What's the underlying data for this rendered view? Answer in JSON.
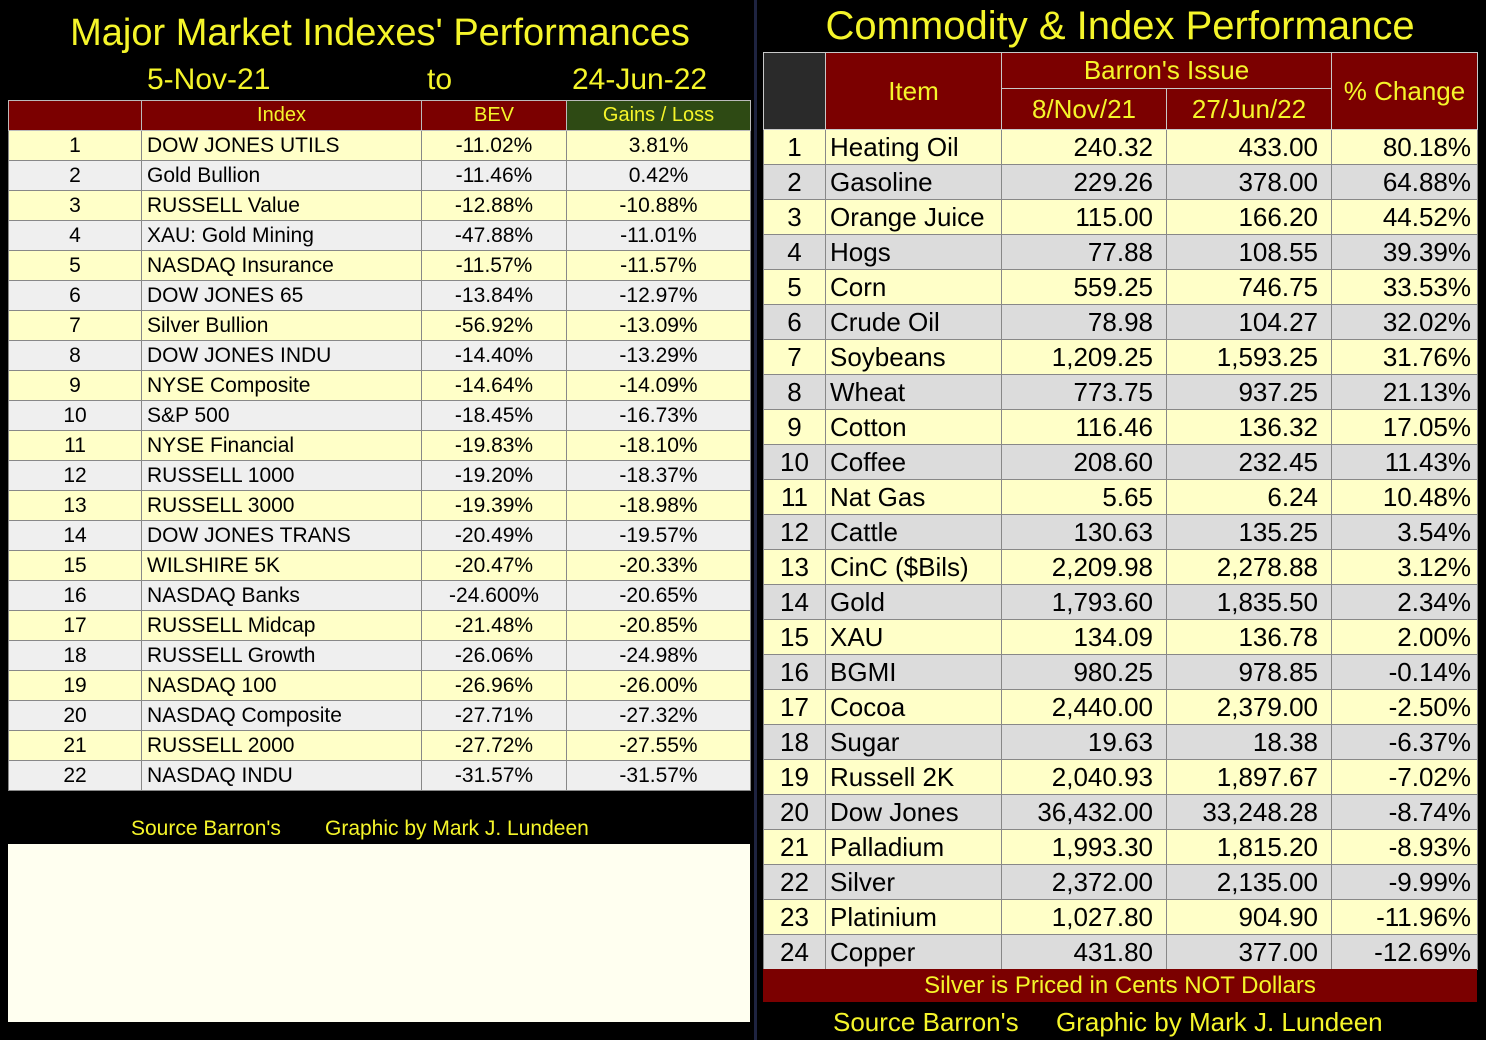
{
  "left": {
    "title": "Major Market Indexes' Performances",
    "date_from": "5-Nov-21",
    "date_to_word": "to",
    "date_to": "24-Jun-22",
    "headers": {
      "num": "",
      "index": "Index",
      "bev": "BEV",
      "gains": "Gains / Loss"
    },
    "rows": [
      {
        "n": "1",
        "name": "DOW JONES UTILS",
        "bev": "-11.02%",
        "gain": "3.81%"
      },
      {
        "n": "2",
        "name": "Gold Bullion",
        "bev": "-11.46%",
        "gain": "0.42%"
      },
      {
        "n": "3",
        "name": "RUSSELL Value",
        "bev": "-12.88%",
        "gain": "-10.88%"
      },
      {
        "n": "4",
        "name": "XAU: Gold Mining",
        "bev": "-47.88%",
        "gain": "-11.01%"
      },
      {
        "n": "5",
        "name": "NASDAQ Insurance",
        "bev": "-11.57%",
        "gain": "-11.57%"
      },
      {
        "n": "6",
        "name": "DOW JONES 65",
        "bev": "-13.84%",
        "gain": "-12.97%"
      },
      {
        "n": "7",
        "name": "Silver Bullion",
        "bev": "-56.92%",
        "gain": "-13.09%"
      },
      {
        "n": "8",
        "name": "DOW JONES INDU",
        "bev": "-14.40%",
        "gain": "-13.29%"
      },
      {
        "n": "9",
        "name": "NYSE Composite",
        "bev": "-14.64%",
        "gain": "-14.09%"
      },
      {
        "n": "10",
        "name": "S&P 500",
        "bev": "-18.45%",
        "gain": "-16.73%"
      },
      {
        "n": "11",
        "name": "NYSE Financial",
        "bev": "-19.83%",
        "gain": "-18.10%"
      },
      {
        "n": "12",
        "name": "RUSSELL 1000",
        "bev": "-19.20%",
        "gain": "-18.37%"
      },
      {
        "n": "13",
        "name": "RUSSELL 3000",
        "bev": "-19.39%",
        "gain": "-18.98%"
      },
      {
        "n": "14",
        "name": "DOW JONES TRANS",
        "bev": "-20.49%",
        "gain": "-19.57%"
      },
      {
        "n": "15",
        "name": "WILSHIRE 5K",
        "bev": "-20.47%",
        "gain": "-20.33%"
      },
      {
        "n": "16",
        "name": "NASDAQ Banks",
        "bev": "-24.600%",
        "gain": "-20.65%"
      },
      {
        "n": "17",
        "name": "RUSSELL Midcap",
        "bev": "-21.48%",
        "gain": "-20.85%"
      },
      {
        "n": "18",
        "name": "RUSSELL Growth",
        "bev": "-26.06%",
        "gain": "-24.98%"
      },
      {
        "n": "19",
        "name": "NASDAQ 100",
        "bev": "-26.96%",
        "gain": "-26.00%"
      },
      {
        "n": "20",
        "name": "NASDAQ Composite",
        "bev": "-27.71%",
        "gain": "-27.32%"
      },
      {
        "n": "21",
        "name": "RUSSELL 2000",
        "bev": "-27.72%",
        "gain": "-27.55%"
      },
      {
        "n": "22",
        "name": "NASDAQ INDU",
        "bev": "-31.57%",
        "gain": "-31.57%"
      }
    ],
    "source": "Source Barron's",
    "credit": "Graphic by Mark J. Lundeen"
  },
  "right": {
    "title": "Commodity & Index Performance",
    "headers": {
      "item": "Item",
      "barrons": "Barron's Issue",
      "date1": "8/Nov/21",
      "date2": "27/Jun/22",
      "change": "% Change"
    },
    "rows": [
      {
        "n": "1",
        "name": "Heating Oil",
        "v1": "240.32",
        "v2": "433.00",
        "pct": "80.18%"
      },
      {
        "n": "2",
        "name": "Gasoline",
        "v1": "229.26",
        "v2": "378.00",
        "pct": "64.88%"
      },
      {
        "n": "3",
        "name": "Orange Juice",
        "v1": "115.00",
        "v2": "166.20",
        "pct": "44.52%"
      },
      {
        "n": "4",
        "name": "Hogs",
        "v1": "77.88",
        "v2": "108.55",
        "pct": "39.39%"
      },
      {
        "n": "5",
        "name": "Corn",
        "v1": "559.25",
        "v2": "746.75",
        "pct": "33.53%"
      },
      {
        "n": "6",
        "name": "Crude Oil",
        "v1": "78.98",
        "v2": "104.27",
        "pct": "32.02%"
      },
      {
        "n": "7",
        "name": "Soybeans",
        "v1": "1,209.25",
        "v2": "1,593.25",
        "pct": "31.76%"
      },
      {
        "n": "8",
        "name": "Wheat",
        "v1": "773.75",
        "v2": "937.25",
        "pct": "21.13%"
      },
      {
        "n": "9",
        "name": "Cotton",
        "v1": "116.46",
        "v2": "136.32",
        "pct": "17.05%"
      },
      {
        "n": "10",
        "name": "Coffee",
        "v1": "208.60",
        "v2": "232.45",
        "pct": "11.43%"
      },
      {
        "n": "11",
        "name": "Nat Gas",
        "v1": "5.65",
        "v2": "6.24",
        "pct": "10.48%"
      },
      {
        "n": "12",
        "name": "Cattle",
        "v1": "130.63",
        "v2": "135.25",
        "pct": "3.54%"
      },
      {
        "n": "13",
        "name": "CinC ($Bils)",
        "v1": "2,209.98",
        "v2": "2,278.88",
        "pct": "3.12%"
      },
      {
        "n": "14",
        "name": "Gold",
        "v1": "1,793.60",
        "v2": "1,835.50",
        "pct": "2.34%"
      },
      {
        "n": "15",
        "name": "XAU",
        "v1": "134.09",
        "v2": "136.78",
        "pct": "2.00%"
      },
      {
        "n": "16",
        "name": "BGMI",
        "v1": "980.25",
        "v2": "978.85",
        "pct": "-0.14%"
      },
      {
        "n": "17",
        "name": "Cocoa",
        "v1": "2,440.00",
        "v2": "2,379.00",
        "pct": "-2.50%"
      },
      {
        "n": "18",
        "name": "Sugar",
        "v1": "19.63",
        "v2": "18.38",
        "pct": "-6.37%"
      },
      {
        "n": "19",
        "name": "Russell 2K",
        "v1": "2,040.93",
        "v2": "1,897.67",
        "pct": "-7.02%"
      },
      {
        "n": "20",
        "name": "Dow Jones",
        "v1": "36,432.00",
        "v2": "33,248.28",
        "pct": "-8.74%"
      },
      {
        "n": "21",
        "name": "Palladium",
        "v1": "1,993.30",
        "v2": "1,815.20",
        "pct": "-8.93%"
      },
      {
        "n": "22",
        "name": "Silver",
        "v1": "2,372.00",
        "v2": "2,135.00",
        "pct": "-9.99%"
      },
      {
        "n": "23",
        "name": "Platinium",
        "v1": "1,027.80",
        "v2": "904.90",
        "pct": "-11.96%"
      },
      {
        "n": "24",
        "name": "Copper",
        "v1": "431.80",
        "v2": "377.00",
        "pct": "-12.69%"
      }
    ],
    "note": "Silver is Priced in Cents NOT Dollars",
    "source": "Source Barron's",
    "credit": "Graphic by Mark J. Lundeen"
  },
  "colors": {
    "title_yellow": "#f5f52a",
    "header_red": "#7b0000",
    "header_green": "#2e4a14",
    "row_yellow": "#ffffc8",
    "row_gray_left": "#efefef",
    "row_gray_right": "#dcdcdc"
  }
}
